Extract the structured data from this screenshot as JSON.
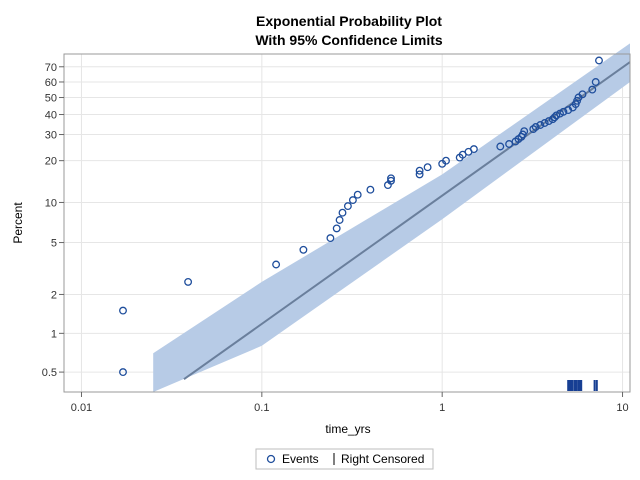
{
  "chart_data": {
    "type": "scatter",
    "title": "Exponential Probability Plot",
    "subtitle": "With 95% Confidence Limits",
    "xlabel": "time_yrs",
    "ylabel": "Percent",
    "x_scale": "log",
    "y_scale": "exponential-probability",
    "xlim": [
      0.008,
      11
    ],
    "ylim": [
      0.35,
      78
    ],
    "x_ticks": [
      0.01,
      0.1,
      1,
      10
    ],
    "x_tick_labels": [
      "0.01",
      "0.1",
      "1",
      "10"
    ],
    "y_ticks": [
      0.5,
      1,
      2,
      5,
      10,
      20,
      30,
      40,
      50,
      60,
      70
    ],
    "y_tick_labels": [
      "0.5",
      "1",
      "2",
      "5",
      "10",
      "20",
      "30",
      "40",
      "50",
      "60",
      "70"
    ],
    "grid": true,
    "fit_line": {
      "x": [
        0.037,
        11
      ],
      "y": [
        0.44,
        73
      ]
    },
    "confidence_band": {
      "x": [
        0.025,
        0.1,
        1,
        11
      ],
      "lower": [
        0.35,
        0.8,
        7.5,
        60
      ],
      "upper": [
        0.7,
        2.5,
        16,
        84
      ]
    },
    "series": [
      {
        "name": "Events",
        "marker": "open-circle",
        "x": [
          0.017,
          0.017,
          0.039,
          0.12,
          0.17,
          0.24,
          0.26,
          0.27,
          0.28,
          0.3,
          0.32,
          0.34,
          0.4,
          0.5,
          0.52,
          0.52,
          0.75,
          0.75,
          0.83,
          1.0,
          1.05,
          1.25,
          1.3,
          1.4,
          1.5,
          2.1,
          2.35,
          2.55,
          2.65,
          2.75,
          2.8,
          2.85,
          3.2,
          3.3,
          3.5,
          3.7,
          3.9,
          4.1,
          4.2,
          4.3,
          4.5,
          4.7,
          5.0,
          5.3,
          5.5,
          5.6,
          5.7,
          6.0,
          6.8,
          7.1,
          7.4
        ],
        "y": [
          0.5,
          1.5,
          2.5,
          3.4,
          4.4,
          5.4,
          6.4,
          7.4,
          8.4,
          9.4,
          10.4,
          11.4,
          12.4,
          13.4,
          14.4,
          15.0,
          16.0,
          17.0,
          18.0,
          19.0,
          20.0,
          21.0,
          22.0,
          23.0,
          24.0,
          25.0,
          26.0,
          27.0,
          28.0,
          29.0,
          30.0,
          31.5,
          32.5,
          33.5,
          34.5,
          35.5,
          36.5,
          37.5,
          38.5,
          39.5,
          40.5,
          41.5,
          42.5,
          44.0,
          46.0,
          48.0,
          50.0,
          52.0,
          55.0,
          60.0,
          74.0
        ]
      },
      {
        "name": "Right Censored",
        "marker": "vertical-bar",
        "x": [
          5.0,
          5.1,
          5.2,
          5.3,
          5.45,
          5.55,
          5.7,
          5.8,
          5.9,
          7.0,
          7.2
        ]
      }
    ],
    "legend": {
      "position": "bottom",
      "entries": [
        "Events",
        "Right Censored"
      ]
    },
    "colors": {
      "points": "#1f4e9c",
      "fit_line": "#6a7f9c",
      "band": "#b7cbe6",
      "censored": "#173f93",
      "grid": "#e6e6e6",
      "frame": "#999999"
    }
  }
}
